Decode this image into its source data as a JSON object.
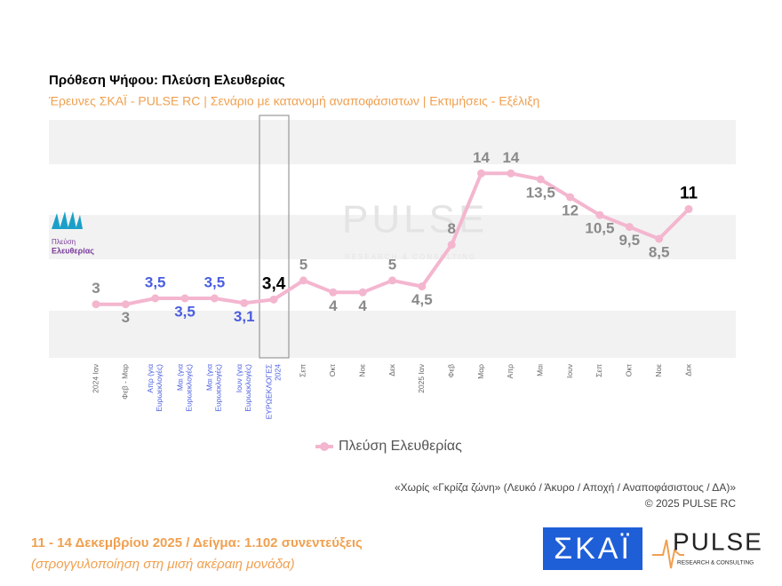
{
  "chart_data": {
    "type": "line",
    "title": "Πρόθεση Ψήφου:  Πλεύση Ελευθερίας",
    "subtitle": "Έρευνες ΣΚΑΪ - PULSE RC  |  Σενάριο με κατανομή αναποφάσιστων  |  Εκτιμήσεις - Εξέλιξη",
    "categories": [
      [
        "2024 Ιαν"
      ],
      [
        "Φεβ - Μαρ"
      ],
      [
        "Απρ (για",
        "Ευρωεκλογές)"
      ],
      [
        "Μαι (για",
        "Ευρωεκλογές)"
      ],
      [
        "Μαι (για",
        "Ευρωεκλογές)"
      ],
      [
        "Ιουν (για",
        "Ευρωεκλογές)"
      ],
      [
        "ΕΥΡΩΕΚΛΟΓΕΣ",
        "2024"
      ],
      [
        "Σεπ"
      ],
      [
        "Οκτ"
      ],
      [
        "Νοε"
      ],
      [
        "Δεκ"
      ],
      [
        "2025 Ιαν"
      ],
      [
        "Φεβ"
      ],
      [
        "Μαρ"
      ],
      [
        "Απρ"
      ],
      [
        "Μαι"
      ],
      [
        "Ιουν"
      ],
      [
        "Σεπ"
      ],
      [
        "Οκτ"
      ],
      [
        "Νοε"
      ],
      [
        "Δεκ"
      ]
    ],
    "category_colors": [
      "#666",
      "#666",
      "#4a5ee0",
      "#4a5ee0",
      "#4a5ee0",
      "#4a5ee0",
      "#4a5ee0",
      "#666",
      "#666",
      "#666",
      "#666",
      "#666",
      "#666",
      "#666",
      "#666",
      "#666",
      "#666",
      "#666",
      "#666",
      "#666",
      "#666"
    ],
    "series": [
      {
        "name": "Πλεύση Ελευθερίας",
        "color": "#f4b6cf",
        "values": [
          3,
          3,
          3.5,
          3.5,
          3.5,
          3.1,
          3.4,
          5,
          4,
          4,
          5,
          4.5,
          8,
          14,
          14,
          13.5,
          12,
          10.5,
          9.5,
          8.5,
          11
        ],
        "value_labels": [
          "3",
          "3",
          "3,5",
          "3,5",
          "3,5",
          "3,1",
          "3,4",
          "5",
          "4",
          "4",
          "5",
          "4,5",
          "8",
          "14",
          "14",
          "13,5",
          "12",
          "10,5",
          "9,5",
          "8,5",
          "11"
        ],
        "value_label_colors": [
          "#8a8a8a",
          "#8a8a8a",
          "#4a5ee0",
          "#4a5ee0",
          "#4a5ee0",
          "#4a5ee0",
          "#000",
          "#8a8a8a",
          "#8a8a8a",
          "#8a8a8a",
          "#8a8a8a",
          "#8a8a8a",
          "#8a8a8a",
          "#8a8a8a",
          "#8a8a8a",
          "#8a8a8a",
          "#8a8a8a",
          "#8a8a8a",
          "#8a8a8a",
          "#8a8a8a",
          "#000"
        ]
      }
    ],
    "ylim": [
      -1.5,
      18.5
    ],
    "party_logo": [
      "Πλεύση",
      "Ελευθερίας"
    ],
    "watermark": [
      "PULSE",
      "RESEARCH & CONSULTING"
    ],
    "note": "«Χωρίς «Γκρίζα ζώνη»   (Λευκό / Άκυρο / Αποχή / Αναποφάσιστους / ΔΑ)»",
    "copyright": "©  2025  PULSE RC",
    "fieldwork": "11 - 14 Δεκεμβρίου 2025  /  Δείγμα:  1.102 συνεντεύξεις",
    "rounding": "(στρογγυλοποίηση στη μισή ακέραιη μονάδα)",
    "logo_skai": "ΣΚΑΪ",
    "logo_pulse": [
      "PULSE",
      "RESEARCH & CONSULTING"
    ]
  }
}
